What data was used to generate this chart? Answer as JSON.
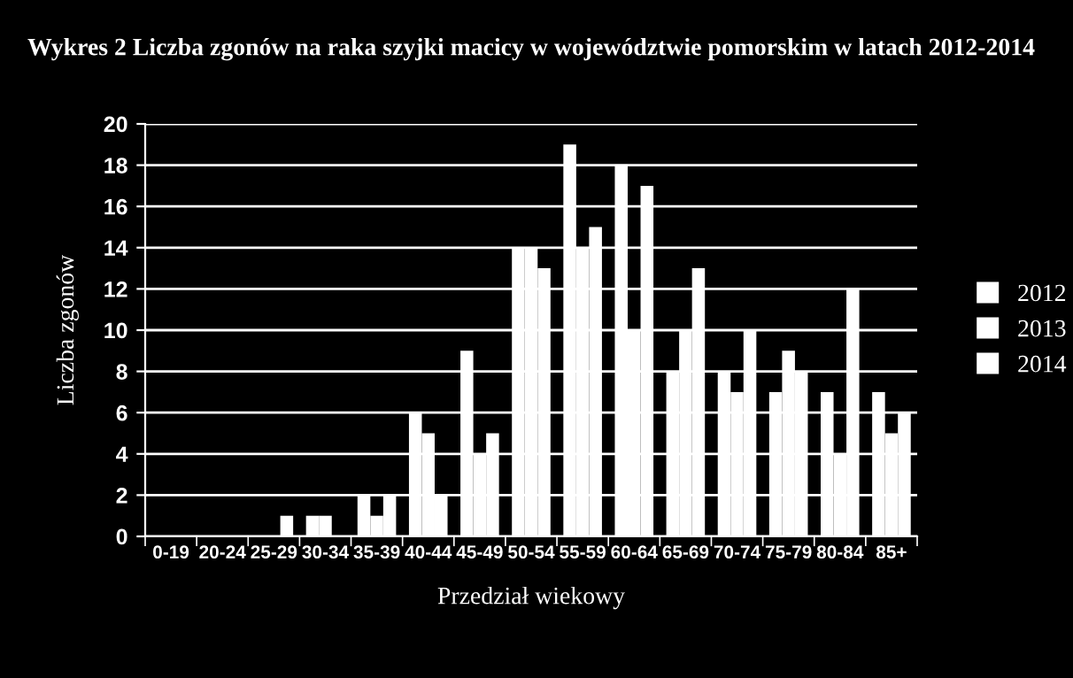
{
  "chart_data": {
    "type": "bar",
    "title": "Wykres 2 Liczba zgonów na raka szyjki macicy w województwie pomorskim w latach 2012-2014",
    "xlabel": "Przedział wiekowy",
    "ylabel": "Liczba zgonów",
    "categories": [
      "0-19",
      "20-24",
      "25-29",
      "30-34",
      "35-39",
      "40-44",
      "45-49",
      "50-54",
      "55-59",
      "60-64",
      "65-69",
      "70-74",
      "75-79",
      "80-84",
      "85+"
    ],
    "series": [
      {
        "name": "2012",
        "color": "#ffffff",
        "values": [
          0,
          0,
          0,
          1,
          2,
          6,
          9,
          14,
          19,
          18,
          8,
          8,
          7,
          7,
          7
        ]
      },
      {
        "name": "2013",
        "color": "#ffffff",
        "values": [
          0,
          0,
          0,
          1,
          1,
          5,
          4,
          14,
          14,
          10,
          10,
          7,
          9,
          4,
          5
        ]
      },
      {
        "name": "2014",
        "color": "#ffffff",
        "values": [
          0,
          0,
          1,
          0,
          2,
          2,
          5,
          13,
          15,
          17,
          13,
          10,
          8,
          12,
          6
        ]
      }
    ],
    "ylim": [
      0,
      20
    ],
    "yticks": [
      0,
      2,
      4,
      6,
      8,
      10,
      12,
      14,
      16,
      18,
      20
    ],
    "grid": "y",
    "legend": "right"
  }
}
